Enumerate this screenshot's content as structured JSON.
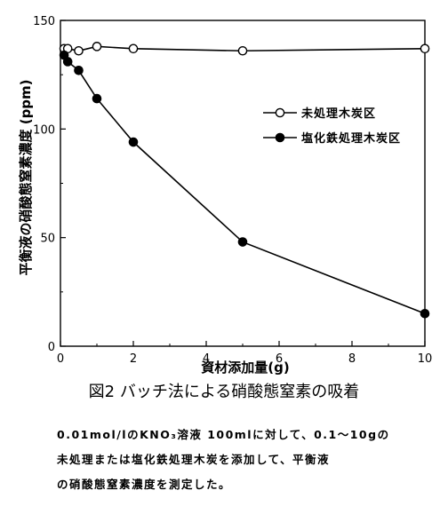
{
  "chart_data": {
    "type": "line",
    "ylabel": "平衡液の硝酸態窒素濃度 (ppm)",
    "xlabel": "資材添加量(g)",
    "xlim": [
      0,
      10
    ],
    "ylim": [
      0,
      150
    ],
    "x_ticks": [
      "0",
      "2",
      "4",
      "6",
      "8",
      "10"
    ],
    "y_ticks": [
      "0",
      "50",
      "100",
      "150"
    ],
    "legend_position": "upper-right",
    "series": [
      {
        "name": "未処理木炭区",
        "marker": "open-circle",
        "x": [
          0.1,
          0.2,
          0.5,
          1,
          2,
          5,
          10
        ],
        "y": [
          137,
          137,
          136,
          138,
          137,
          136,
          137
        ]
      },
      {
        "name": "塩化鉄処理木炭区",
        "marker": "filled-circle",
        "x": [
          0.1,
          0.2,
          0.5,
          1,
          2,
          5,
          10
        ],
        "y": [
          134,
          131,
          127,
          114,
          94,
          48,
          15
        ]
      }
    ]
  },
  "figure_title": "図2 バッチ法による硝酸態窒素の吸着",
  "caption_lines": [
    "0.01mol/lのKNO₃溶液 100mlに対して、0.1～10gの",
    "未処理または塩化鉄処理木炭を添加して、平衡液",
    "の硝酸態窒素濃度を測定した。"
  ]
}
